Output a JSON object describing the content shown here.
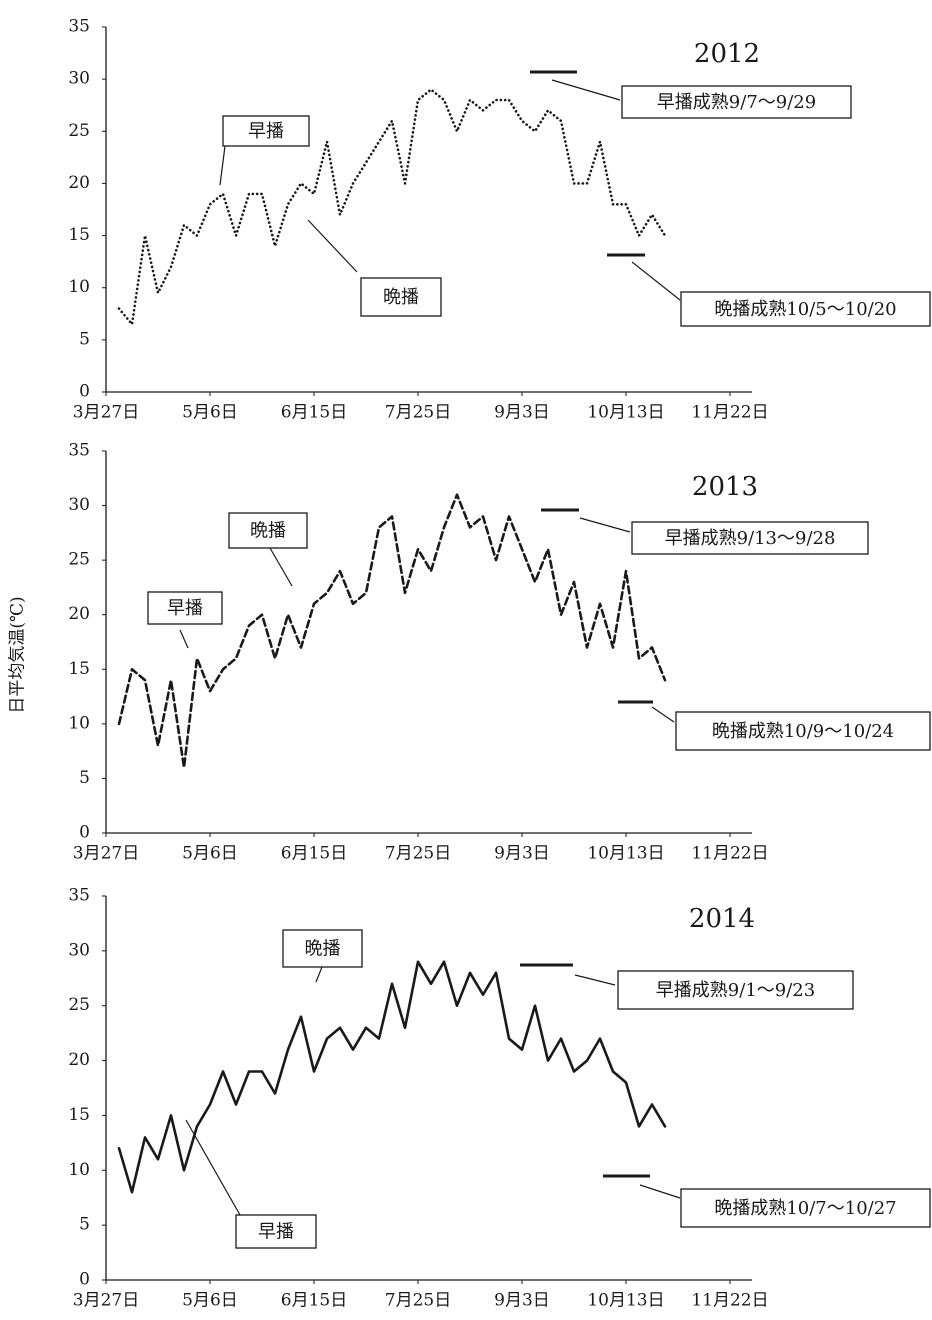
{
  "chart_data": [
    {
      "type": "line",
      "title": "2012",
      "line_style": "dotted",
      "color": "#1a1a1a",
      "x": [
        "04-01",
        "04-06",
        "04-11",
        "04-16",
        "04-21",
        "04-26",
        "05-01",
        "05-06",
        "05-11",
        "05-16",
        "05-21",
        "05-26",
        "05-31",
        "06-05",
        "06-10",
        "06-15",
        "06-20",
        "06-25",
        "06-30",
        "07-05",
        "07-10",
        "07-15",
        "07-20",
        "07-25",
        "07-30",
        "08-04",
        "08-09",
        "08-14",
        "08-19",
        "08-24",
        "08-29",
        "09-03",
        "09-08",
        "09-13",
        "09-18",
        "09-23",
        "09-28",
        "10-03",
        "10-08",
        "10-13",
        "10-18",
        "10-23",
        "10-28"
      ],
      "values": [
        8,
        6.5,
        15,
        9.5,
        12,
        16,
        15,
        18,
        19,
        15,
        19,
        19,
        14,
        18,
        20,
        19,
        24,
        17,
        20,
        22,
        24,
        26,
        20,
        28,
        29,
        28,
        25,
        28,
        27,
        28,
        28,
        26,
        25,
        27,
        26,
        20,
        20,
        24,
        18,
        18,
        15,
        17,
        15
      ],
      "xlim": [
        "03-27",
        "11-22"
      ],
      "xticks": [
        {
          "value": "03-27",
          "label": "3月27日"
        },
        {
          "value": "05-06",
          "label": "5月6日"
        },
        {
          "value": "06-15",
          "label": "6月15日"
        },
        {
          "value": "07-25",
          "label": "7月25日"
        },
        {
          "value": "09-03",
          "label": "9月3日"
        },
        {
          "value": "10-13",
          "label": "10月13日"
        },
        {
          "value": "11-22",
          "label": "11月22日"
        }
      ],
      "ylim": [
        0,
        35
      ],
      "yticks": [
        0,
        5,
        10,
        15,
        20,
        25,
        30,
        35
      ],
      "annotations": [
        "早播",
        "晩播",
        "早播成熟9/7〜9/29",
        "晩播成熟10/5〜10/20"
      ]
    },
    {
      "type": "line",
      "title": "2013",
      "line_style": "dashed",
      "color": "#1a1a1a",
      "ylabel": "日平均気温(℃)",
      "x": [
        "04-01",
        "04-06",
        "04-11",
        "04-16",
        "04-21",
        "04-26",
        "05-01",
        "05-06",
        "05-11",
        "05-16",
        "05-21",
        "05-26",
        "05-31",
        "06-05",
        "06-10",
        "06-15",
        "06-20",
        "06-25",
        "06-30",
        "07-05",
        "07-10",
        "07-15",
        "07-20",
        "07-25",
        "07-30",
        "08-04",
        "08-09",
        "08-14",
        "08-19",
        "08-24",
        "08-29",
        "09-03",
        "09-08",
        "09-13",
        "09-18",
        "09-23",
        "09-28",
        "10-03",
        "10-08",
        "10-13",
        "10-18",
        "10-23",
        "10-28"
      ],
      "values": [
        10,
        15,
        14,
        8,
        14,
        6,
        16,
        13,
        15,
        16,
        19,
        20,
        16,
        20,
        17,
        21,
        22,
        24,
        21,
        22,
        28,
        29,
        22,
        26,
        24,
        28,
        31,
        28,
        29,
        25,
        29,
        26,
        23,
        26,
        20,
        23,
        17,
        21,
        17,
        24,
        16,
        17,
        14
      ],
      "xlim": [
        "03-27",
        "11-22"
      ],
      "xticks": [
        {
          "value": "03-27",
          "label": "3月27日"
        },
        {
          "value": "05-06",
          "label": "5月6日"
        },
        {
          "value": "06-15",
          "label": "6月15日"
        },
        {
          "value": "07-25",
          "label": "7月25日"
        },
        {
          "value": "09-03",
          "label": "9月3日"
        },
        {
          "value": "10-13",
          "label": "10月13日"
        },
        {
          "value": "11-22",
          "label": "11月22日"
        }
      ],
      "ylim": [
        0,
        35
      ],
      "yticks": [
        0,
        5,
        10,
        15,
        20,
        25,
        30,
        35
      ],
      "annotations": [
        "早播",
        "晩播",
        "早播成熟9/13〜9/28",
        "晩播成熟10/9〜10/24"
      ]
    },
    {
      "type": "line",
      "title": "2014",
      "line_style": "solid",
      "color": "#1a1a1a",
      "x": [
        "04-01",
        "04-06",
        "04-11",
        "04-16",
        "04-21",
        "04-26",
        "05-01",
        "05-06",
        "05-11",
        "05-16",
        "05-21",
        "05-26",
        "05-31",
        "06-05",
        "06-10",
        "06-15",
        "06-20",
        "06-25",
        "06-30",
        "07-05",
        "07-10",
        "07-15",
        "07-20",
        "07-25",
        "07-30",
        "08-04",
        "08-09",
        "08-14",
        "08-19",
        "08-24",
        "08-29",
        "09-03",
        "09-08",
        "09-13",
        "09-18",
        "09-23",
        "09-28",
        "10-03",
        "10-08",
        "10-13",
        "10-18",
        "10-23",
        "10-28"
      ],
      "values": [
        12,
        8,
        13,
        11,
        15,
        10,
        14,
        16,
        19,
        16,
        19,
        19,
        17,
        21,
        24,
        19,
        22,
        23,
        21,
        23,
        22,
        27,
        23,
        29,
        27,
        29,
        25,
        28,
        26,
        28,
        22,
        21,
        25,
        20,
        22,
        19,
        20,
        22,
        19,
        18,
        14,
        16,
        14
      ],
      "xlim": [
        "03-27",
        "11-22"
      ],
      "xticks": [
        {
          "value": "03-27",
          "label": "3月27日"
        },
        {
          "value": "05-06",
          "label": "5月6日"
        },
        {
          "value": "06-15",
          "label": "6月15日"
        },
        {
          "value": "07-25",
          "label": "7月25日"
        },
        {
          "value": "09-03",
          "label": "9月3日"
        },
        {
          "value": "10-13",
          "label": "10月13日"
        },
        {
          "value": "11-22",
          "label": "11月22日"
        }
      ],
      "ylim": [
        0,
        35
      ],
      "yticks": [
        0,
        5,
        10,
        15,
        20,
        25,
        30,
        35
      ],
      "annotations": [
        "晩播",
        "早播",
        "早播成熟9/1〜9/23",
        "晩播成熟10/7〜10/27"
      ]
    }
  ]
}
